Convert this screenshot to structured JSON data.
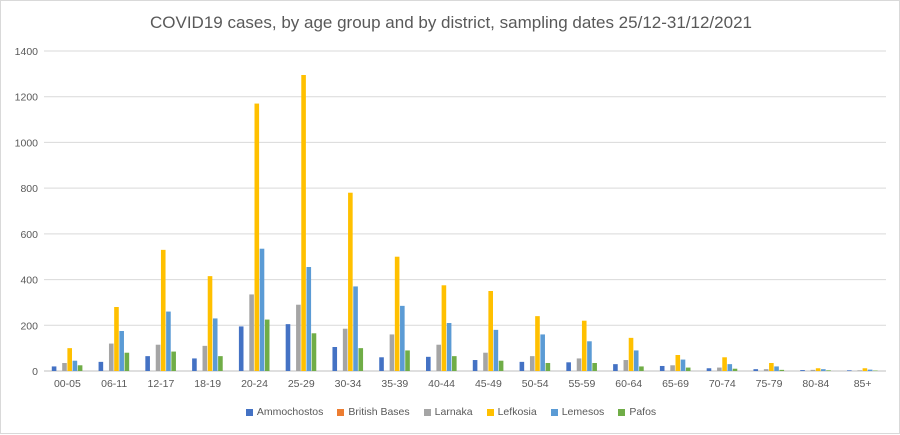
{
  "chart_data": {
    "type": "bar",
    "title": "COVID19 cases, by age group and by district, sampling dates 25/12-31/12/2021",
    "xlabel": "",
    "ylabel": "",
    "ylim": [
      0,
      1400
    ],
    "yticks": [
      0,
      200,
      400,
      600,
      800,
      1000,
      1200,
      1400
    ],
    "grid": true,
    "legend_position": "bottom",
    "categories": [
      "00-05",
      "06-11",
      "12-17",
      "18-19",
      "20-24",
      "25-29",
      "30-34",
      "35-39",
      "40-44",
      "45-49",
      "50-54",
      "55-59",
      "60-64",
      "65-69",
      "70-74",
      "75-79",
      "80-84",
      "85+"
    ],
    "series": [
      {
        "name": "Ammochostos",
        "color": "#4472c4",
        "values": [
          20,
          40,
          65,
          55,
          195,
          205,
          105,
          60,
          62,
          48,
          40,
          38,
          30,
          22,
          12,
          8,
          4,
          3
        ]
      },
      {
        "name": "British Bases",
        "color": "#ed7d31",
        "values": [
          0,
          0,
          0,
          0,
          0,
          0,
          0,
          0,
          0,
          0,
          0,
          0,
          0,
          0,
          0,
          0,
          0,
          0
        ]
      },
      {
        "name": "Larnaka",
        "color": "#a5a5a5",
        "values": [
          35,
          120,
          115,
          110,
          335,
          290,
          185,
          160,
          115,
          80,
          65,
          55,
          48,
          25,
          15,
          8,
          5,
          3
        ]
      },
      {
        "name": "Lefkosia",
        "color": "#ffc000",
        "values": [
          100,
          280,
          530,
          415,
          1170,
          1295,
          780,
          500,
          375,
          350,
          240,
          220,
          145,
          70,
          60,
          35,
          12,
          12
        ]
      },
      {
        "name": "Lemesos",
        "color": "#5b9bd5",
        "values": [
          45,
          175,
          260,
          230,
          535,
          455,
          370,
          285,
          210,
          180,
          160,
          130,
          90,
          50,
          30,
          20,
          8,
          6
        ]
      },
      {
        "name": "Pafos",
        "color": "#70ad47",
        "values": [
          25,
          80,
          85,
          65,
          225,
          165,
          100,
          90,
          65,
          45,
          35,
          35,
          20,
          15,
          10,
          5,
          3,
          2
        ]
      }
    ]
  }
}
